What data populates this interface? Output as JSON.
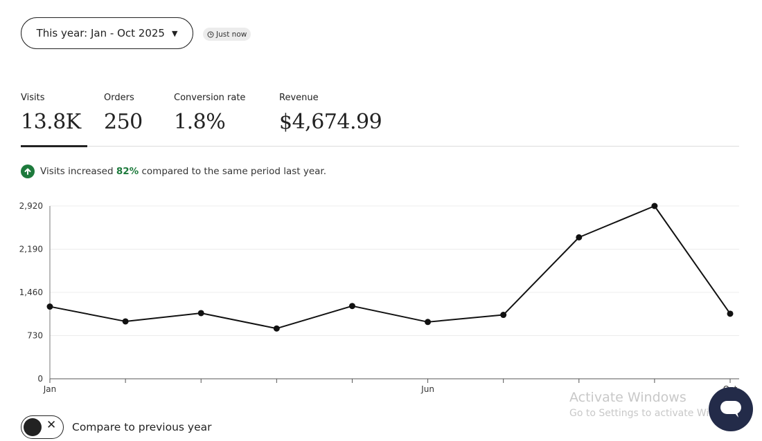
{
  "header": {
    "date_range_label": "This year: Jan - Oct 2025",
    "updated_badge": "Just now"
  },
  "metrics": [
    {
      "label": "Visits",
      "value": "13.8K",
      "active": true
    },
    {
      "label": "Orders",
      "value": "250",
      "active": false
    },
    {
      "label": "Conversion rate",
      "value": "1.8%",
      "active": false
    },
    {
      "label": "Revenue",
      "value": "$4,674.99",
      "active": false
    }
  ],
  "insight": {
    "prefix": "Visits increased",
    "percent": "82%",
    "suffix": "compared to the same period last year."
  },
  "chart_data": {
    "type": "line",
    "x_tick_labels": [
      "Jan",
      "",
      "",
      "",
      "",
      "Jun",
      "",
      "",
      "",
      "Oct"
    ],
    "y_ticks": [
      0,
      730,
      1460,
      2190,
      2920
    ],
    "y_tick_labels": [
      "0",
      "730",
      "1,460",
      "2,190",
      "2,920"
    ],
    "ylim": [
      0,
      2920
    ],
    "values": [
      1220,
      970,
      1110,
      850,
      1230,
      960,
      1080,
      2390,
      2920,
      1100
    ],
    "grid": true,
    "line_color": "#111111"
  },
  "compare": {
    "label": "Compare to previous year",
    "enabled": false
  },
  "overlay": {
    "watermark_line1": "Activate Windows",
    "watermark_line2": "Go to Settings to activate Windows."
  },
  "icons": {
    "clock": "clock-icon",
    "arrow_up": "arrow-up-icon",
    "caret": "caret-down-icon",
    "close": "close-icon",
    "chat": "chat-icon"
  },
  "colors": {
    "accent_green": "#1d7a3c",
    "chat_button": "#232b49"
  }
}
